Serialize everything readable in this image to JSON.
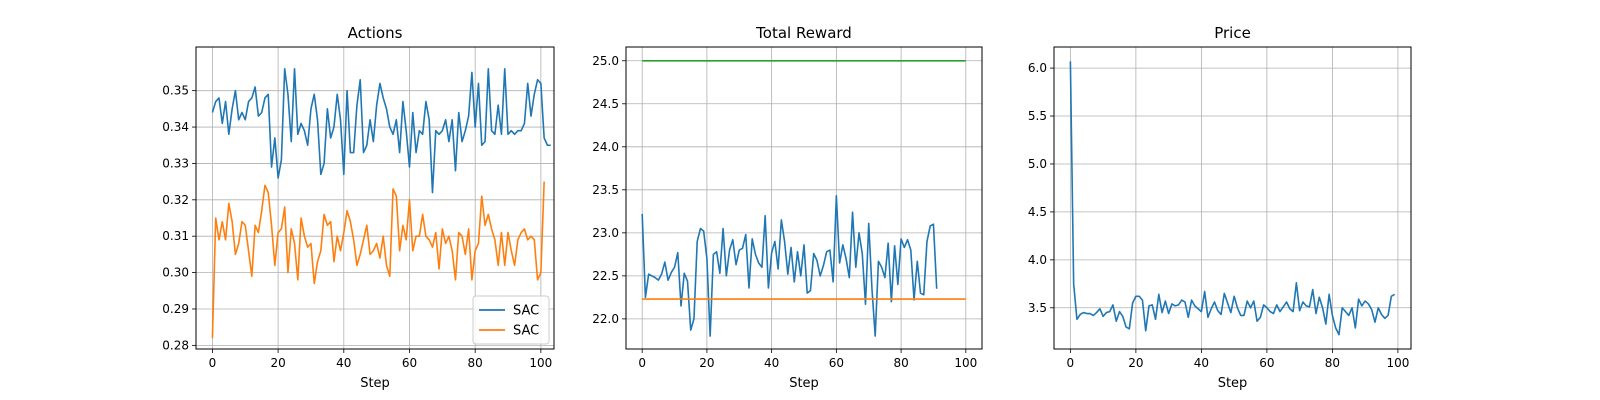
{
  "colors": {
    "blue": "#1f77b4",
    "orange": "#ff7f0e",
    "green": "#2ca02c",
    "grid": "#b0b0b0"
  },
  "chart_data": [
    {
      "type": "line",
      "title": "Actions",
      "xlabel": "Step",
      "ylabel": "",
      "xlim": [
        -5,
        104
      ],
      "ylim": [
        0.279,
        0.362
      ],
      "xticks": [
        0,
        20,
        40,
        60,
        80,
        100
      ],
      "xtick_labels": [
        "0",
        "20",
        "40",
        "60",
        "80",
        "100"
      ],
      "yticks": [
        0.28,
        0.29,
        0.3,
        0.31,
        0.32,
        0.33,
        0.34,
        0.35
      ],
      "ytick_labels": [
        "0.28",
        "0.29",
        "0.30",
        "0.31",
        "0.32",
        "0.33",
        "0.34",
        "0.35"
      ],
      "grid": true,
      "legend": "lower-right",
      "series": [
        {
          "name": "SAC",
          "color": "blue",
          "x_start": 0,
          "x_step": 1,
          "values": [
            0.344,
            0.347,
            0.348,
            0.341,
            0.347,
            0.338,
            0.345,
            0.35,
            0.342,
            0.344,
            0.342,
            0.347,
            0.348,
            0.351,
            0.343,
            0.344,
            0.348,
            0.349,
            0.329,
            0.337,
            0.326,
            0.331,
            0.356,
            0.349,
            0.336,
            0.356,
            0.338,
            0.341,
            0.339,
            0.335,
            0.345,
            0.349,
            0.342,
            0.327,
            0.33,
            0.345,
            0.337,
            0.34,
            0.349,
            0.342,
            0.327,
            0.35,
            0.333,
            0.333,
            0.346,
            0.353,
            0.333,
            0.335,
            0.342,
            0.336,
            0.346,
            0.352,
            0.348,
            0.345,
            0.34,
            0.338,
            0.342,
            0.333,
            0.347,
            0.339,
            0.329,
            0.344,
            0.333,
            0.339,
            0.338,
            0.347,
            0.342,
            0.322,
            0.339,
            0.338,
            0.339,
            0.342,
            0.336,
            0.342,
            0.328,
            0.344,
            0.336,
            0.339,
            0.343,
            0.355,
            0.34,
            0.352,
            0.335,
            0.336,
            0.356,
            0.339,
            0.338,
            0.346,
            0.338,
            0.356,
            0.338,
            0.339,
            0.338,
            0.339,
            0.339,
            0.341,
            0.352,
            0.343,
            0.349,
            0.353,
            0.352,
            0.337,
            0.335,
            0.335
          ]
        },
        {
          "name": "SAC",
          "color": "orange",
          "x_start": 0,
          "x_step": 1,
          "values": [
            0.282,
            0.315,
            0.309,
            0.314,
            0.309,
            0.319,
            0.314,
            0.305,
            0.308,
            0.314,
            0.313,
            0.306,
            0.299,
            0.313,
            0.311,
            0.317,
            0.324,
            0.322,
            0.313,
            0.302,
            0.311,
            0.312,
            0.318,
            0.3,
            0.312,
            0.308,
            0.298,
            0.315,
            0.31,
            0.307,
            0.308,
            0.297,
            0.303,
            0.306,
            0.316,
            0.313,
            0.314,
            0.303,
            0.31,
            0.306,
            0.311,
            0.317,
            0.314,
            0.309,
            0.302,
            0.305,
            0.309,
            0.313,
            0.305,
            0.306,
            0.308,
            0.304,
            0.31,
            0.302,
            0.299,
            0.323,
            0.321,
            0.306,
            0.313,
            0.309,
            0.32,
            0.306,
            0.31,
            0.31,
            0.316,
            0.31,
            0.309,
            0.307,
            0.311,
            0.301,
            0.312,
            0.308,
            0.31,
            0.306,
            0.298,
            0.311,
            0.31,
            0.305,
            0.312,
            0.298,
            0.306,
            0.308,
            0.321,
            0.313,
            0.316,
            0.312,
            0.309,
            0.302,
            0.311,
            0.302,
            0.311,
            0.306,
            0.302,
            0.309,
            0.311,
            0.312,
            0.309,
            0.31,
            0.309,
            0.298,
            0.3,
            0.325
          ]
        }
      ]
    },
    {
      "type": "line",
      "title": "Total Reward",
      "xlabel": "Step",
      "ylabel": "",
      "xlim": [
        -5,
        105
      ],
      "ylim": [
        21.65,
        25.16
      ],
      "xticks": [
        0,
        20,
        40,
        60,
        80,
        100
      ],
      "xtick_labels": [
        "0",
        "20",
        "40",
        "60",
        "80",
        "100"
      ],
      "yticks": [
        22.0,
        22.5,
        23.0,
        23.5,
        24.0,
        24.5,
        25.0
      ],
      "ytick_labels": [
        "22.0",
        "22.5",
        "23.0",
        "23.5",
        "24.0",
        "24.5",
        "25.0"
      ],
      "grid": true,
      "legend": "",
      "series": [
        {
          "name": "",
          "color": "blue",
          "x_start": 0,
          "x_step": 1,
          "values": [
            23.22,
            22.25,
            22.52,
            22.5,
            22.48,
            22.45,
            22.52,
            22.66,
            22.45,
            22.54,
            22.6,
            22.77,
            22.15,
            22.53,
            22.44,
            21.87,
            22.0,
            22.9,
            23.05,
            23.02,
            22.7,
            21.8,
            22.75,
            22.78,
            22.53,
            23.05,
            22.5,
            22.8,
            22.92,
            22.63,
            22.8,
            22.82,
            22.98,
            22.36,
            22.93,
            22.75,
            22.65,
            22.6,
            23.2,
            22.36,
            22.77,
            22.9,
            22.58,
            23.15,
            22.9,
            22.52,
            22.83,
            22.43,
            22.78,
            22.5,
            22.86,
            22.3,
            22.33,
            22.76,
            22.68,
            22.5,
            22.62,
            22.78,
            22.8,
            22.43,
            23.43,
            22.65,
            22.86,
            22.7,
            22.48,
            23.24,
            22.6,
            23.0,
            22.76,
            22.17,
            23.11,
            22.35,
            21.8,
            22.67,
            22.6,
            22.48,
            22.88,
            22.2,
            22.85,
            22.4,
            22.93,
            22.83,
            22.92,
            22.8,
            22.22,
            22.67,
            22.3,
            22.28,
            22.9,
            23.08,
            23.1,
            22.35
          ]
        },
        {
          "name": "",
          "color": "orange",
          "type": "hline",
          "x": [
            0,
            100
          ],
          "value": 22.23
        },
        {
          "name": "",
          "color": "green",
          "type": "hline",
          "x": [
            0,
            100
          ],
          "value": 25.0
        }
      ]
    },
    {
      "type": "line",
      "title": "Price",
      "xlabel": "Step",
      "ylabel": "",
      "xlim": [
        -5,
        104
      ],
      "ylim": [
        3.07,
        6.22
      ],
      "xticks": [
        0,
        20,
        40,
        60,
        80,
        100
      ],
      "xtick_labels": [
        "0",
        "20",
        "40",
        "60",
        "80",
        "100"
      ],
      "yticks": [
        3.5,
        4.0,
        4.5,
        5.0,
        5.5,
        6.0
      ],
      "ytick_labels": [
        "3.5",
        "4.0",
        "4.5",
        "5.0",
        "5.5",
        "6.0"
      ],
      "grid": true,
      "legend": "",
      "series": [
        {
          "name": "",
          "color": "blue",
          "x_start": 0,
          "x_step": 1,
          "values": [
            6.07,
            3.75,
            3.38,
            3.43,
            3.45,
            3.44,
            3.44,
            3.42,
            3.45,
            3.49,
            3.41,
            3.45,
            3.46,
            3.53,
            3.36,
            3.46,
            3.41,
            3.3,
            3.28,
            3.55,
            3.62,
            3.62,
            3.58,
            3.26,
            3.52,
            3.53,
            3.38,
            3.64,
            3.45,
            3.57,
            3.44,
            3.54,
            3.52,
            3.53,
            3.58,
            3.56,
            3.4,
            3.58,
            3.52,
            3.49,
            3.46,
            3.67,
            3.4,
            3.49,
            3.56,
            3.47,
            3.43,
            3.65,
            3.55,
            3.45,
            3.62,
            3.5,
            3.42,
            3.42,
            3.57,
            3.5,
            3.57,
            3.36,
            3.4,
            3.53,
            3.5,
            3.46,
            3.44,
            3.53,
            3.46,
            3.51,
            3.56,
            3.49,
            3.46,
            3.76,
            3.47,
            3.56,
            3.52,
            3.51,
            3.69,
            3.44,
            3.61,
            3.5,
            3.33,
            3.64,
            3.42,
            3.29,
            3.22,
            3.5,
            3.46,
            3.42,
            3.5,
            3.29,
            3.59,
            3.52,
            3.57,
            3.54,
            3.48,
            3.35,
            3.5,
            3.43,
            3.39,
            3.42,
            3.62,
            3.64
          ]
        }
      ]
    }
  ],
  "legend_entries": [
    {
      "label": "SAC",
      "color": "blue"
    },
    {
      "label": "SAC",
      "color": "orange"
    }
  ]
}
